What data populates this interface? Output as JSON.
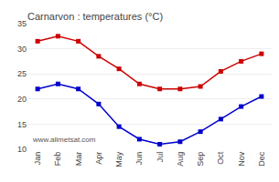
{
  "chart_data": {
    "type": "line",
    "title": "Carnarvon : temperatures (°C)",
    "categories": [
      "Jan",
      "Feb",
      "Mar",
      "Apr",
      "May",
      "Jun",
      "Jul",
      "Aug",
      "Sep",
      "Oct",
      "Nov",
      "Dec"
    ],
    "series": [
      {
        "color": "#cc0000",
        "marker": "square",
        "line_style": "solid",
        "values": [
          31.5,
          32.5,
          31.5,
          28.5,
          26.0,
          23.0,
          22.0,
          22.0,
          22.5,
          25.5,
          27.5,
          29.0
        ]
      },
      {
        "color": "#0000cc",
        "marker": "square",
        "line_style": "solid",
        "values": [
          22.0,
          23.0,
          22.0,
          19.0,
          14.5,
          12.0,
          11.0,
          11.5,
          13.5,
          16.0,
          18.5,
          20.5
        ]
      }
    ],
    "ylim": [
      10,
      35
    ],
    "yticks": [
      10,
      15,
      20,
      25,
      30,
      35
    ],
    "grid": true,
    "annotations": [
      {
        "text": "www.allmetsat.com",
        "color": "#555555"
      }
    ]
  }
}
